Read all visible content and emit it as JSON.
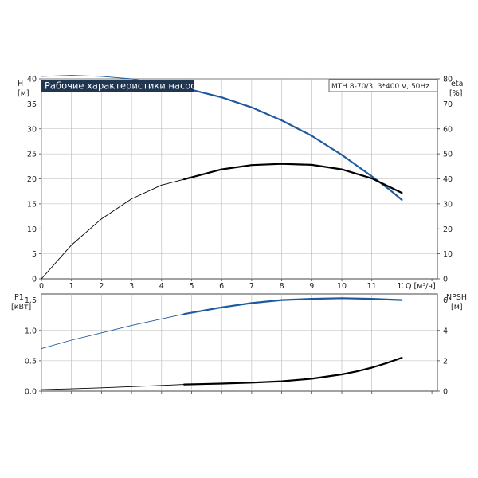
{
  "chart_data": [
    {
      "type": "line",
      "title": "Рабочие характеристики насоса",
      "model": "MTH 8-70/3, 3*400 V, 50Hz",
      "xlabel": "Q [м³/ч]",
      "xlim": [
        0,
        13
      ],
      "x_ticks": [
        "0",
        "1",
        "2",
        "3",
        "4",
        "5",
        "6",
        "7",
        "8",
        "9",
        "10",
        "11",
        "12"
      ],
      "y_left": {
        "label": "H",
        "unit": "[м]",
        "ylim": [
          0,
          40
        ],
        "ticks": [
          "0",
          "5",
          "10",
          "15",
          "20",
          "25",
          "30",
          "35",
          "40"
        ]
      },
      "y_right": {
        "label": "eta",
        "unit": "[%]",
        "ylim": [
          0,
          80
        ],
        "ticks": [
          "0",
          "10",
          "20",
          "30",
          "40",
          "50",
          "60",
          "70",
          "80"
        ]
      },
      "grid": true,
      "series": [
        {
          "axis": "left",
          "color": "#1f5a9e",
          "x": [
            0,
            1,
            2,
            3,
            4,
            4.75,
            6,
            7,
            8,
            9,
            10,
            11,
            11.6,
            12
          ],
          "y": [
            40.5,
            40.7,
            40.5,
            40.0,
            39.1,
            38.2,
            36.3,
            34.3,
            31.7,
            28.6,
            24.8,
            20.5,
            17.8,
            15.8
          ]
        },
        {
          "axis": "right",
          "color": "#000000",
          "x": [
            0,
            1,
            2,
            3,
            4,
            4.75,
            6,
            7,
            8,
            9,
            10,
            11,
            12
          ],
          "y": [
            0,
            13.5,
            24.0,
            32.0,
            37.5,
            39.8,
            43.8,
            45.5,
            46.0,
            45.6,
            43.8,
            40.2,
            34.4
          ]
        }
      ]
    },
    {
      "type": "line",
      "xlim": [
        0,
        13
      ],
      "x_ticks": [
        "0",
        "1",
        "2",
        "3",
        "4",
        "5",
        "6",
        "7",
        "8",
        "9",
        "10",
        "11",
        "12"
      ],
      "y_left": {
        "label": "P1",
        "unit": "[кВт]",
        "ylim": [
          0,
          1.6
        ],
        "ticks": [
          "0.0",
          "0.5",
          "1.0",
          "1.5"
        ]
      },
      "y_right": {
        "label": "NPSH",
        "unit": "[м]",
        "ylim": [
          0,
          6.4
        ],
        "ticks": [
          "0",
          "2",
          "4",
          "6"
        ]
      },
      "grid": true,
      "series": [
        {
          "axis": "left",
          "color": "#1f5a9e",
          "x": [
            0,
            1,
            2,
            3,
            4,
            4.75,
            6,
            7,
            8,
            9,
            10,
            11,
            12
          ],
          "y": [
            0.7,
            0.84,
            0.96,
            1.08,
            1.19,
            1.27,
            1.38,
            1.45,
            1.5,
            1.52,
            1.53,
            1.52,
            1.5
          ]
        },
        {
          "axis": "right",
          "color": "#000000",
          "x": [
            0,
            1,
            2,
            3,
            4,
            4.75,
            6,
            7,
            8,
            9,
            10,
            10.5,
            11,
            11.5,
            12
          ],
          "y": [
            0.1,
            0.15,
            0.22,
            0.3,
            0.38,
            0.44,
            0.5,
            0.56,
            0.65,
            0.82,
            1.1,
            1.3,
            1.55,
            1.85,
            2.2
          ]
        }
      ]
    }
  ]
}
